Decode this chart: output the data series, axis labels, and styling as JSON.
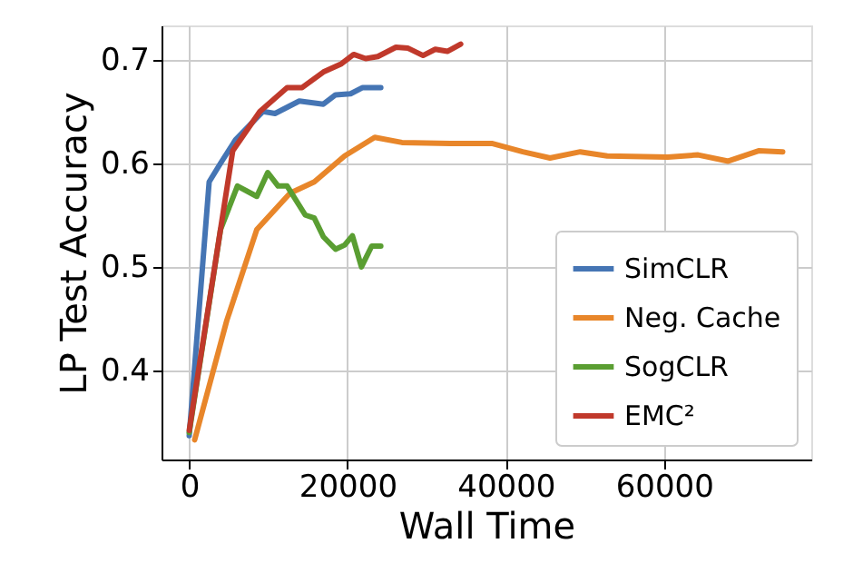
{
  "chart_data": {
    "type": "line",
    "xlabel": "Wall Time",
    "ylabel": "LP Test Accuracy",
    "xlim": [
      -3500,
      78600
    ],
    "ylim": [
      0.314,
      0.733
    ],
    "xticks": [
      0,
      20000,
      40000,
      60000
    ],
    "yticks": [
      0.4,
      0.5,
      0.6,
      0.7
    ],
    "grid": true,
    "legend": "bottom right",
    "line_style": "solid",
    "marker": "none",
    "series": [
      {
        "name": "SimCLR",
        "color": "#4575b4",
        "x": [
          0,
          2520,
          3960,
          5890,
          9330,
          10840,
          13910,
          16950,
          18490,
          20390,
          21920,
          24210
        ],
        "values": [
          0.337,
          0.582,
          0.6,
          0.623,
          0.65,
          0.648,
          0.66,
          0.657,
          0.666,
          0.667,
          0.673,
          0.673
        ]
      },
      {
        "name": "Neg. Cache",
        "color": "#e8862a",
        "x": [
          690,
          4740,
          8540,
          12740,
          15810,
          19630,
          23440,
          26880,
          32990,
          38330,
          42150,
          45590,
          49410,
          52820,
          60480,
          64300,
          68110,
          71940,
          74990
        ],
        "values": [
          0.333,
          0.448,
          0.536,
          0.571,
          0.582,
          0.607,
          0.625,
          0.62,
          0.619,
          0.619,
          0.611,
          0.605,
          0.611,
          0.607,
          0.606,
          0.608,
          0.602,
          0.612,
          0.611
        ]
      },
      {
        "name": "SogCLR",
        "color": "#5a9e32",
        "x": [
          0,
          3960,
          6090,
          8540,
          9920,
          11230,
          12370,
          14660,
          15810,
          16950,
          18490,
          19630,
          20620,
          21760,
          23060,
          24210
        ],
        "values": [
          0.34,
          0.536,
          0.578,
          0.568,
          0.591,
          0.578,
          0.578,
          0.55,
          0.547,
          0.529,
          0.517,
          0.521,
          0.53,
          0.5,
          0.52,
          0.52
        ]
      },
      {
        "name": "EMC²",
        "color": "#c0392b",
        "x": [
          0,
          5500,
          8930,
          12370,
          14270,
          16950,
          19240,
          20780,
          22290,
          23830,
          26120,
          27660,
          29550,
          31090,
          32620,
          34300
        ],
        "values": [
          0.342,
          0.612,
          0.65,
          0.673,
          0.673,
          0.688,
          0.696,
          0.705,
          0.701,
          0.703,
          0.712,
          0.711,
          0.704,
          0.71,
          0.708,
          0.715
        ]
      }
    ]
  }
}
